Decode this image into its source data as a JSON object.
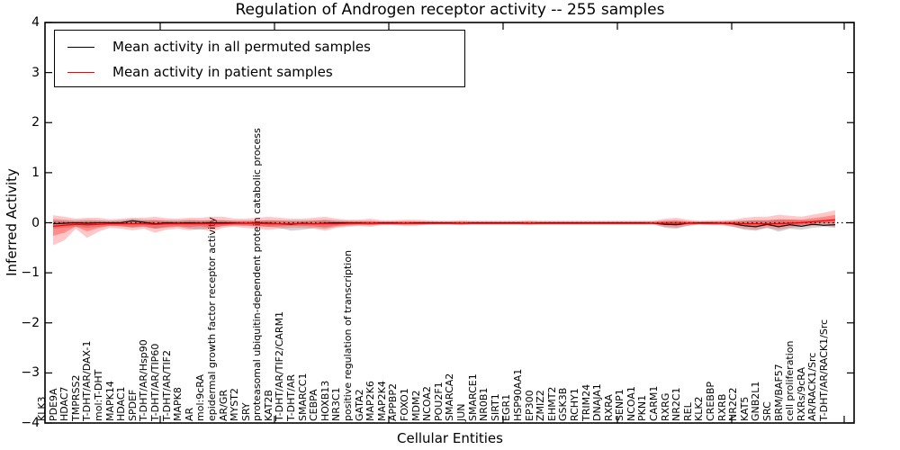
{
  "title": "Regulation of Androgen receptor activity -- 255 samples",
  "axes": {
    "x_label": "Cellular Entities",
    "y_label": "Inferred Activity",
    "y_ticks": [
      4,
      3,
      2,
      1,
      0,
      -1,
      -2,
      -3,
      -4
    ],
    "y_min": -4,
    "y_max": 4
  },
  "legend": {
    "items": [
      {
        "label": "Mean activity in all permuted samples",
        "color": "#000000"
      },
      {
        "label": "Mean activity in patient samples",
        "color": "#ff0000"
      }
    ]
  },
  "colors": {
    "permuted_line": "#000000",
    "patient_line": "#ff0000",
    "patient_band": "#ff0000",
    "permuted_band": "#808080",
    "frame": "#000000",
    "background": "#ffffff"
  },
  "chart_data": {
    "type": "line",
    "title": "Regulation of Androgen receptor activity -- 255 samples",
    "xlabel": "Cellular Entities",
    "ylabel": "Inferred Activity",
    "ylim": [
      -4,
      4
    ],
    "grid": false,
    "legend_position": "upper left",
    "zero_line": {
      "y": 0,
      "style": "dotted",
      "color": "#000000"
    },
    "categories": [
      "KLK3",
      "PDE9A",
      "HDAC7",
      "TMPRSS2",
      "T-DHT/AR/DAX-1",
      "mol:T-DHT",
      "MAPK14",
      "HDAC1",
      "SPDEF",
      "T-DHT/AR/Hsp90",
      "T-DHT/AR/TIP60",
      "T-DHT/AR/TIF2",
      "MAPK8",
      "AR",
      "mol:9cRA",
      "epidermal growth factor receptor activity",
      "AR/GR",
      "MYST2",
      "SRY",
      "proteasomal ubiquitin-dependent protein catabolic process",
      "KAT2B",
      "T-DHT/AR/TIF2/CARM1",
      "T-DHT/AR",
      "SMARCC1",
      "CEBPA",
      "HOXB13",
      "NR3C1",
      "positive regulation of transcription",
      "GATA2",
      "MAP2K6",
      "MAP2K4",
      "APPBP2",
      "FOXO1",
      "MDM2",
      "NCOA2",
      "POU2F1",
      "SMARCA2",
      "JUN",
      "SMARCE1",
      "NR0B1",
      "SIRT1",
      "EGR1",
      "HSP90AA1",
      "EP300",
      "ZMIZ2",
      "EHMT2",
      "GSK3B",
      "RCHY1",
      "TRIM24",
      "DNAJA1",
      "RXRA",
      "SENP1",
      "NCOA1",
      "PKN1",
      "CARM1",
      "RXRG",
      "NR2C1",
      "REL",
      "KLK2",
      "CREBBP",
      "RXRB",
      "NR2C2",
      "KAT5",
      "GNB2L1",
      "SRC",
      "BRM/BAF57",
      "cell proliferation",
      "RXRs/9cRA",
      "AR/RACK1/Src",
      "T-DHT/AR/RACK1/Src"
    ],
    "series": [
      {
        "name": "Mean activity in all permuted samples",
        "color": "#000000",
        "style": "solid",
        "values": [
          -0.02,
          -0.01,
          0,
          -0.01,
          0,
          0,
          0,
          0.04,
          0.01,
          -0.02,
          0,
          -0.01,
          0,
          -0.01,
          0,
          0,
          0,
          -0.01,
          0,
          -0.01,
          -0.02,
          -0.03,
          -0.01,
          -0.02,
          -0.01,
          0,
          0,
          0,
          -0.01,
          0,
          0,
          -0.01,
          0,
          0,
          0,
          0,
          -0.01,
          0,
          0,
          0,
          0,
          0,
          -0.01,
          0,
          0,
          0,
          0,
          0,
          0,
          0,
          0,
          0,
          0,
          -0.01,
          -0.03,
          -0.04,
          -0.01,
          0,
          0,
          -0.01,
          -0.02,
          -0.06,
          -0.08,
          -0.03,
          -0.08,
          -0.04,
          -0.07,
          -0.03,
          -0.05,
          -0.04
        ]
      },
      {
        "name": "Mean activity in patient samples",
        "color": "#ff0000",
        "style": "solid",
        "values": [
          -0.07,
          -0.05,
          -0.03,
          -0.04,
          -0.03,
          -0.02,
          -0.02,
          -0.02,
          -0.02,
          -0.03,
          -0.02,
          -0.02,
          -0.02,
          -0.02,
          -0.02,
          -0.02,
          -0.01,
          -0.01,
          -0.01,
          -0.02,
          -0.02,
          -0.02,
          -0.02,
          -0.02,
          -0.02,
          -0.02,
          -0.01,
          -0.01,
          -0.01,
          -0.01,
          -0.01,
          -0.01,
          -0.01,
          -0.01,
          -0.01,
          -0.01,
          -0.01,
          -0.01,
          -0.01,
          -0.01,
          -0.01,
          -0.01,
          -0.01,
          -0.01,
          -0.01,
          -0.01,
          -0.01,
          -0.01,
          -0.01,
          -0.01,
          -0.01,
          -0.01,
          -0.01,
          -0.01,
          -0.01,
          -0.01,
          -0.01,
          -0.01,
          -0.01,
          -0.01,
          -0.01,
          -0.02,
          -0.02,
          -0.02,
          -0.02,
          -0.01,
          0,
          0.02,
          0.04,
          0.06
        ]
      }
    ],
    "bands": [
      {
        "name": "patient mean ± std",
        "color": "#ff0000",
        "hi": [
          0.15,
          0.12,
          0.08,
          0.1,
          0.1,
          0.07,
          0.08,
          0.1,
          0.1,
          0.12,
          0.09,
          0.08,
          0.1,
          0.1,
          0.12,
          0.12,
          0.08,
          0.08,
          0.1,
          0.12,
          0.1,
          0.08,
          0.08,
          0.1,
          0.12,
          0.08,
          0.06,
          0.06,
          0.08,
          0.05,
          0.05,
          0.06,
          0.06,
          0.05,
          0.04,
          0.04,
          0.05,
          0.04,
          0.04,
          0.04,
          0.04,
          0.04,
          0.05,
          0.04,
          0.04,
          0.04,
          0.04,
          0.04,
          0.04,
          0.04,
          0.04,
          0.04,
          0.04,
          0.04,
          0.08,
          0.1,
          0.06,
          0.04,
          0.05,
          0.05,
          0.06,
          0.1,
          0.12,
          0.12,
          0.16,
          0.14,
          0.12,
          0.16,
          0.2,
          0.25
        ],
        "lo": [
          -0.45,
          -0.35,
          -0.12,
          -0.3,
          -0.18,
          -0.1,
          -0.12,
          -0.15,
          -0.12,
          -0.2,
          -0.14,
          -0.12,
          -0.15,
          -0.12,
          -0.18,
          -0.1,
          -0.08,
          -0.1,
          -0.12,
          -0.14,
          -0.12,
          -0.1,
          -0.1,
          -0.12,
          -0.16,
          -0.1,
          -0.08,
          -0.06,
          -0.08,
          -0.05,
          -0.05,
          -0.06,
          -0.06,
          -0.04,
          -0.04,
          -0.04,
          -0.05,
          -0.04,
          -0.04,
          -0.04,
          -0.04,
          -0.04,
          -0.05,
          -0.04,
          -0.04,
          -0.04,
          -0.04,
          -0.04,
          -0.04,
          -0.04,
          -0.04,
          -0.04,
          -0.04,
          -0.04,
          -0.08,
          -0.1,
          -0.06,
          -0.04,
          -0.05,
          -0.05,
          -0.08,
          -0.12,
          -0.14,
          -0.1,
          -0.14,
          -0.1,
          -0.08,
          -0.06,
          -0.05,
          -0.08
        ]
      },
      {
        "name": "permuted mean ± std",
        "color": "#808080",
        "hi": [
          0.08,
          0.06,
          0.05,
          0.06,
          0.05,
          0.04,
          0.05,
          0.08,
          0.06,
          0.06,
          0.05,
          0.05,
          0.06,
          0.05,
          0.05,
          0.05,
          0.04,
          0.04,
          0.04,
          0.05,
          0.05,
          0.05,
          0.05,
          0.05,
          0.06,
          0.05,
          0.04,
          0.04,
          0.03,
          0.03,
          0.03,
          0.03,
          0.03,
          0.03,
          0.03,
          0.03,
          0.03,
          0.03,
          0.03,
          0.03,
          0.03,
          0.03,
          0.03,
          0.03,
          0.03,
          0.03,
          0.03,
          0.03,
          0.03,
          0.03,
          0.03,
          0.03,
          0.03,
          0.03,
          0.04,
          0.04,
          0.03,
          0.03,
          0.03,
          0.03,
          0.04,
          0.04,
          0.05,
          0.05,
          0.06,
          0.06,
          0.05,
          0.05,
          0.05,
          0.06
        ],
        "lo": [
          -0.12,
          -0.1,
          -0.08,
          -0.1,
          -0.08,
          -0.06,
          -0.07,
          -0.1,
          -0.08,
          -0.12,
          -0.1,
          -0.08,
          -0.12,
          -0.14,
          -0.1,
          -0.07,
          -0.06,
          -0.06,
          -0.07,
          -0.08,
          -0.1,
          -0.16,
          -0.14,
          -0.1,
          -0.12,
          -0.08,
          -0.06,
          -0.05,
          -0.05,
          -0.04,
          -0.04,
          -0.04,
          -0.04,
          -0.04,
          -0.03,
          -0.03,
          -0.04,
          -0.03,
          -0.03,
          -0.03,
          -0.03,
          -0.03,
          -0.03,
          -0.03,
          -0.03,
          -0.03,
          -0.03,
          -0.03,
          -0.03,
          -0.03,
          -0.03,
          -0.03,
          -0.03,
          -0.03,
          -0.1,
          -0.12,
          -0.06,
          -0.03,
          -0.04,
          -0.04,
          -0.08,
          -0.14,
          -0.16,
          -0.1,
          -0.18,
          -0.12,
          -0.14,
          -0.1,
          -0.08,
          -0.1
        ]
      }
    ]
  }
}
